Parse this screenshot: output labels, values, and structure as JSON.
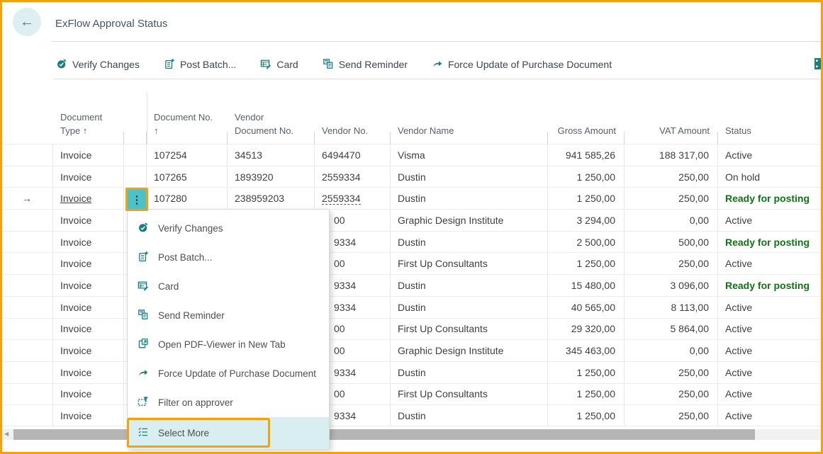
{
  "window": {
    "title": "ExFlow Approval Status"
  },
  "colors": {
    "accent_teal": "#1a7f84",
    "highlight_orange": "#f0a30e",
    "favorable_green": "#117311",
    "select_more_bg": "#d9eef0",
    "dots_button_bg": "#4ec1c8"
  },
  "toolbar": {
    "items": [
      {
        "label": "Verify Changes",
        "icon": "verify-changes-icon"
      },
      {
        "label": "Post Batch...",
        "icon": "post-batch-icon"
      },
      {
        "label": "Card",
        "icon": "card-icon"
      },
      {
        "label": "Send Reminder",
        "icon": "send-reminder-icon"
      },
      {
        "label": "Force Update of Purchase Document",
        "icon": "force-update-icon"
      }
    ]
  },
  "table": {
    "columns": [
      {
        "lines": [
          ""
        ],
        "align": "left"
      },
      {
        "lines": [
          "Document",
          "Type ↑"
        ],
        "align": "left"
      },
      {
        "lines": [
          ""
        ],
        "align": "left"
      },
      {
        "lines": [
          "Document No.",
          "↑"
        ],
        "align": "left"
      },
      {
        "lines": [
          "Vendor",
          "Document No."
        ],
        "align": "left"
      },
      {
        "lines": [
          "Vendor No."
        ],
        "align": "left"
      },
      {
        "lines": [
          "Vendor Name"
        ],
        "align": "left"
      },
      {
        "lines": [
          "Gross Amount"
        ],
        "align": "right"
      },
      {
        "lines": [
          "VAT Amount"
        ],
        "align": "right"
      },
      {
        "lines": [
          "Status"
        ],
        "align": "left"
      }
    ],
    "rows": [
      {
        "doc_type": "Invoice",
        "doc_no": "107254",
        "vendor_doc_no": "34513",
        "vendor_no": "6494470",
        "vendor_name": "Visma",
        "gross": "941 585,26",
        "vat": "188 317,00",
        "status": "Active",
        "status_style": "normal",
        "selected": false,
        "partially_hidden": false
      },
      {
        "doc_type": "Invoice",
        "doc_no": "107265",
        "vendor_doc_no": "1893920",
        "vendor_no": "2559334",
        "vendor_name": "Dustin",
        "gross": "1 250,00",
        "vat": "250,00",
        "status": "On hold",
        "status_style": "normal",
        "selected": false,
        "partially_hidden": false
      },
      {
        "doc_type": "Invoice",
        "doc_no": "107280",
        "vendor_doc_no": "238959203",
        "vendor_no": "2559334",
        "vendor_name": "Dustin",
        "gross": "1 250,00",
        "vat": "250,00",
        "status": "Ready for posting",
        "status_style": "favorable",
        "selected": true,
        "partially_hidden": false
      },
      {
        "doc_type": "Invoice",
        "doc_no": "",
        "vendor_doc_no": "",
        "vendor_no": "00",
        "vendor_name": "Graphic Design Institute",
        "gross": "3 294,00",
        "vat": "0,00",
        "status": "Active",
        "status_style": "normal",
        "selected": false,
        "partially_hidden": true
      },
      {
        "doc_type": "Invoice",
        "doc_no": "",
        "vendor_doc_no": "",
        "vendor_no": "9334",
        "vendor_name": "Dustin",
        "gross": "2 500,00",
        "vat": "500,00",
        "status": "Ready for posting",
        "status_style": "favorable",
        "selected": false,
        "partially_hidden": true
      },
      {
        "doc_type": "Invoice",
        "doc_no": "",
        "vendor_doc_no": "",
        "vendor_no": "00",
        "vendor_name": "First Up Consultants",
        "gross": "1 250,00",
        "vat": "250,00",
        "status": "Active",
        "status_style": "normal",
        "selected": false,
        "partially_hidden": true
      },
      {
        "doc_type": "Invoice",
        "doc_no": "",
        "vendor_doc_no": "",
        "vendor_no": "9334",
        "vendor_name": "Dustin",
        "gross": "15 480,00",
        "vat": "3 096,00",
        "status": "Ready for posting",
        "status_style": "favorable",
        "selected": false,
        "partially_hidden": true
      },
      {
        "doc_type": "Invoice",
        "doc_no": "",
        "vendor_doc_no": "",
        "vendor_no": "9334",
        "vendor_name": "Dustin",
        "gross": "40 565,00",
        "vat": "8 113,00",
        "status": "Active",
        "status_style": "normal",
        "selected": false,
        "partially_hidden": true
      },
      {
        "doc_type": "Invoice",
        "doc_no": "",
        "vendor_doc_no": "",
        "vendor_no": "00",
        "vendor_name": "First Up Consultants",
        "gross": "29 320,00",
        "vat": "5 864,00",
        "status": "Active",
        "status_style": "normal",
        "selected": false,
        "partially_hidden": true
      },
      {
        "doc_type": "Invoice",
        "doc_no": "",
        "vendor_doc_no": "",
        "vendor_no": "00",
        "vendor_name": "Graphic Design Institute",
        "gross": "345 463,00",
        "vat": "0,00",
        "status": "Active",
        "status_style": "normal",
        "selected": false,
        "partially_hidden": true
      },
      {
        "doc_type": "Invoice",
        "doc_no": "",
        "vendor_doc_no": "",
        "vendor_no": "9334",
        "vendor_name": "Dustin",
        "gross": "1 250,00",
        "vat": "250,00",
        "status": "Active",
        "status_style": "normal",
        "selected": false,
        "partially_hidden": true
      },
      {
        "doc_type": "Invoice",
        "doc_no": "",
        "vendor_doc_no": "",
        "vendor_no": "00",
        "vendor_name": "First Up Consultants",
        "gross": "1 250,00",
        "vat": "250,00",
        "status": "Active",
        "status_style": "normal",
        "selected": false,
        "partially_hidden": true
      },
      {
        "doc_type": "Invoice",
        "doc_no": "",
        "vendor_doc_no": "",
        "vendor_no": "9334",
        "vendor_name": "Dustin",
        "gross": "1 250,00",
        "vat": "250,00",
        "status": "Active",
        "status_style": "normal",
        "selected": false,
        "partially_hidden": true
      }
    ]
  },
  "context_menu": {
    "items": [
      {
        "label": "Verify Changes",
        "icon": "verify-changes-icon",
        "highlighted": false
      },
      {
        "label": "Post Batch...",
        "icon": "post-batch-icon",
        "highlighted": false
      },
      {
        "label": "Card",
        "icon": "card-icon",
        "highlighted": false
      },
      {
        "label": "Send Reminder",
        "icon": "send-reminder-icon",
        "highlighted": false
      },
      {
        "label": "Open PDF-Viewer in New Tab",
        "icon": "pdf-viewer-icon",
        "highlighted": false
      },
      {
        "label": "Force Update of Purchase Document",
        "icon": "force-update-icon",
        "highlighted": false
      },
      {
        "label": "Filter on approver",
        "icon": "filter-approver-icon",
        "highlighted": false
      },
      {
        "label": "Select More",
        "icon": "select-more-icon",
        "highlighted": true
      }
    ]
  },
  "row_actions_button": {
    "glyph": "⋮"
  },
  "selected_row_indicator": "→",
  "back_button_glyph": "←"
}
